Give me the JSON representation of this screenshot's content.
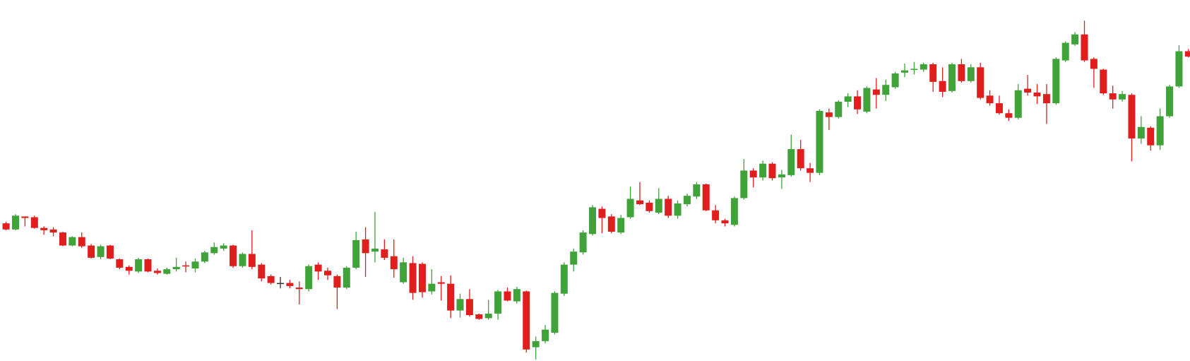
{
  "chart_data": {
    "type": "candlestick",
    "up_color": "#3fa33a",
    "down_color": "#e01e1e",
    "doji_color": "#333333",
    "ylim": [
      0,
      472
    ],
    "open": [
      180,
      172,
      189,
      188,
      174,
      172,
      168,
      151,
      162,
      151,
      136,
      151,
      133,
      123,
      117,
      133,
      118,
      114,
      120,
      125,
      121,
      130,
      141,
      147,
      151,
      124,
      140,
      126,
      111,
      102,
      102,
      96,
      94,
      126,
      118,
      111,
      96,
      122,
      159,
      143,
      146,
      137,
      103,
      128,
      127,
      91,
      103,
      101,
      66,
      81,
      61,
      56,
      62,
      91,
      78,
      91,
      18,
      26,
      37,
      88,
      126,
      142,
      166,
      199,
      189,
      168,
      188,
      210,
      207,
      194,
      212,
      190,
      205,
      215,
      231,
      197,
      184,
      178,
      213,
      249,
      240,
      258,
      240,
      243,
      277,
      252,
      246,
      325,
      319,
      339,
      346,
      326,
      355,
      348,
      358,
      377,
      381,
      381,
      388,
      366,
      353,
      388,
      366,
      384,
      347,
      337,
      324,
      318,
      356,
      351,
      349,
      337,
      393,
      414,
      427,
      395,
      381,
      350,
      342,
      348,
      291,
      305,
      282,
      320,
      359,
      405
    ],
    "high": [
      182,
      192,
      189,
      190,
      176,
      175,
      169,
      163,
      168,
      153,
      152,
      152,
      134,
      125,
      135,
      134,
      121,
      122,
      135,
      130,
      134,
      144,
      155,
      154,
      152,
      142,
      171,
      128,
      113,
      110,
      106,
      104,
      126,
      129,
      122,
      113,
      124,
      169,
      175,
      195,
      159,
      159,
      135,
      137,
      129,
      120,
      111,
      112,
      88,
      94,
      62,
      80,
      93,
      96,
      97,
      92,
      32,
      47,
      91,
      129,
      147,
      171,
      204,
      202,
      192,
      191,
      228,
      234,
      210,
      226,
      216,
      210,
      219,
      234,
      232,
      204,
      186,
      215,
      264,
      252,
      262,
      260,
      250,
      296,
      289,
      259,
      329,
      330,
      341,
      350,
      354,
      359,
      370,
      368,
      378,
      389,
      391,
      390,
      390,
      384,
      390,
      395,
      388,
      390,
      354,
      347,
      329,
      362,
      374,
      362,
      362,
      397,
      418,
      430,
      445,
      397,
      382,
      360,
      353,
      350,
      320,
      307,
      330,
      361,
      413,
      408
    ],
    "low": [
      171,
      171,
      176,
      173,
      165,
      163,
      150,
      150,
      148,
      134,
      133,
      133,
      120,
      113,
      115,
      116,
      113,
      113,
      117,
      116,
      116,
      128,
      139,
      144,
      122,
      122,
      120,
      104,
      100,
      95,
      95,
      74,
      91,
      106,
      106,
      68,
      94,
      120,
      110,
      129,
      132,
      109,
      101,
      80,
      83,
      87,
      79,
      56,
      57,
      58,
      54,
      54,
      54,
      78,
      75,
      11,
      2,
      23,
      35,
      85,
      117,
      139,
      164,
      167,
      167,
      166,
      186,
      204,
      194,
      192,
      187,
      186,
      202,
      212,
      196,
      180,
      176,
      176,
      211,
      227,
      236,
      236,
      225,
      241,
      249,
      234,
      243,
      302,
      317,
      332,
      323,
      324,
      330,
      340,
      356,
      371,
      375,
      378,
      352,
      345,
      351,
      364,
      364,
      342,
      334,
      322,
      314,
      316,
      347,
      336,
      310,
      335,
      391,
      412,
      391,
      357,
      348,
      330,
      339,
      261,
      284,
      275,
      276,
      318,
      357,
      397
    ],
    "close": [
      172,
      190,
      187,
      174,
      171,
      168,
      151,
      162,
      150,
      135,
      150,
      134,
      122,
      118,
      133,
      117,
      115,
      120,
      123,
      124,
      130,
      142,
      149,
      151,
      124,
      140,
      123,
      108,
      102,
      102,
      98,
      94,
      124,
      117,
      112,
      96,
      122,
      158,
      141,
      147,
      135,
      120,
      129,
      89,
      90,
      101,
      101,
      66,
      81,
      60,
      55,
      62,
      91,
      79,
      94,
      15,
      26,
      41,
      89,
      126,
      143,
      168,
      201,
      187,
      169,
      187,
      212,
      205,
      196,
      212,
      190,
      206,
      216,
      231,
      197,
      184,
      180,
      213,
      249,
      240,
      258,
      239,
      244,
      277,
      252,
      246,
      327,
      319,
      339,
      346,
      329,
      357,
      348,
      361,
      376,
      380,
      382,
      388,
      365,
      352,
      388,
      366,
      384,
      344,
      337,
      324,
      318,
      354,
      351,
      346,
      337,
      395,
      416,
      427,
      393,
      382,
      350,
      342,
      349,
      291,
      306,
      282,
      320,
      359,
      405,
      398
    ]
  }
}
